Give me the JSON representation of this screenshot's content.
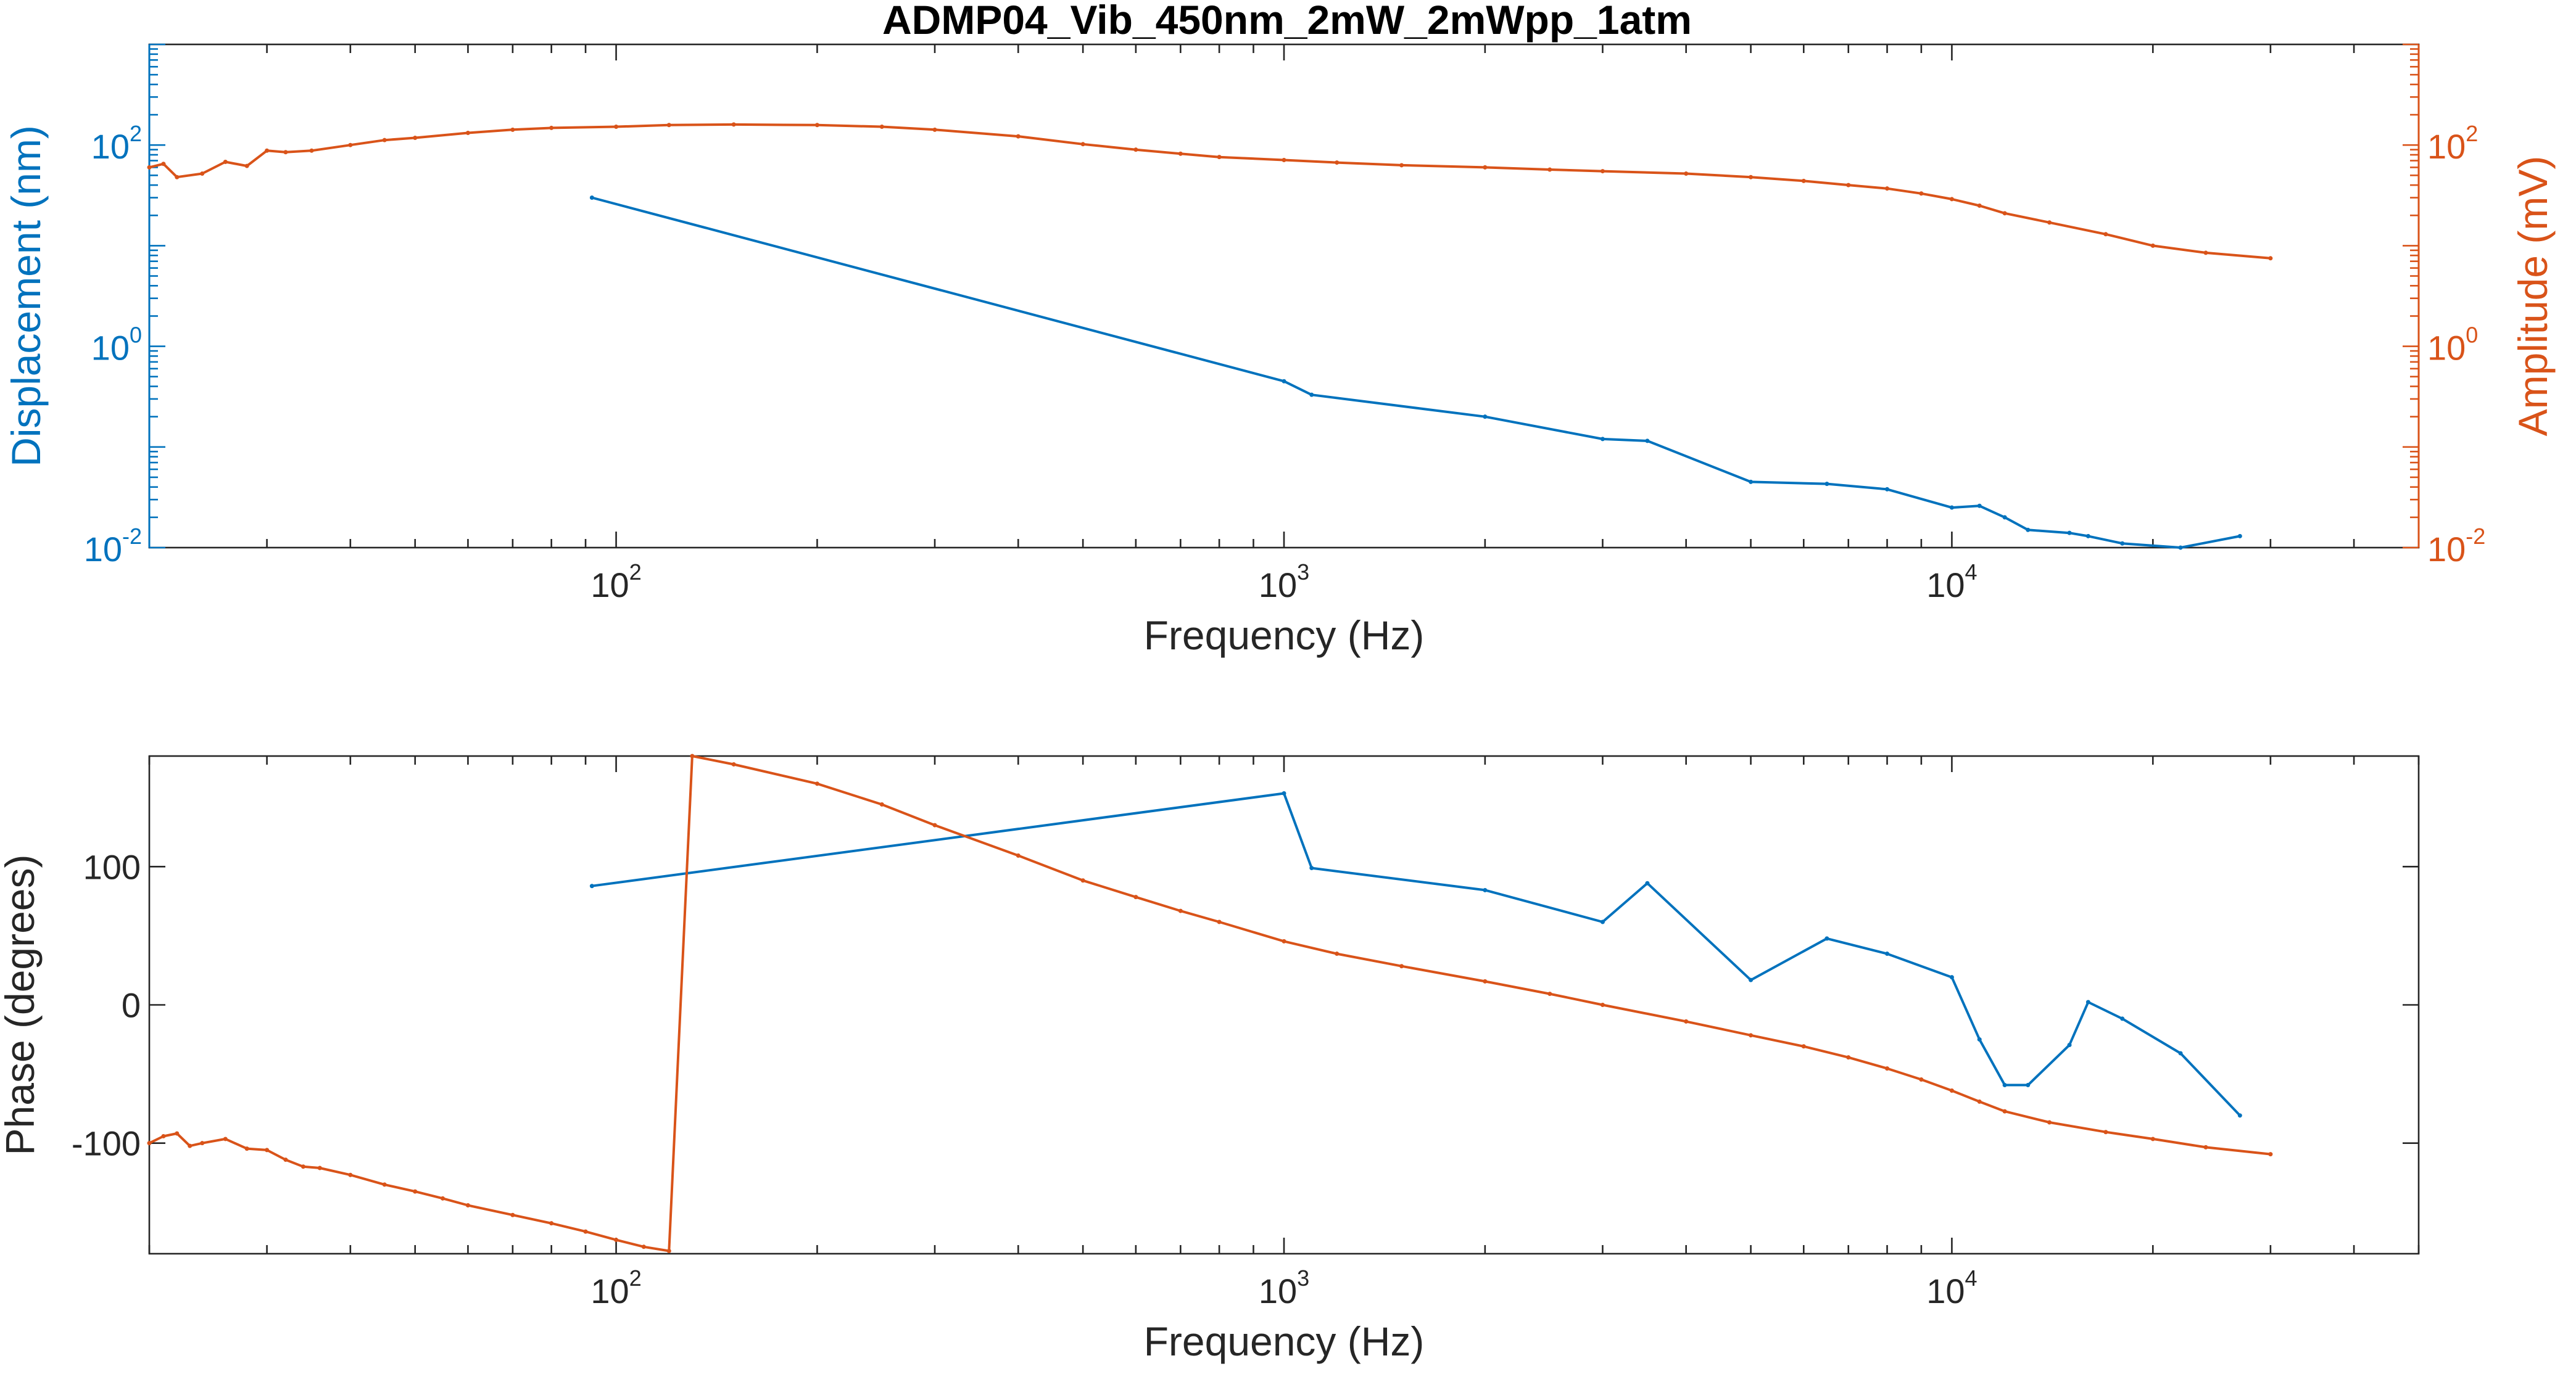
{
  "chart_data": [
    {
      "type": "line",
      "title": "ADMP04_Vib_450nm_2mW_2mWpp_1atm",
      "xlabel": "Frequency (Hz)",
      "ylabel": "Displacement (nm)",
      "ylabel_right": "Amplitude (mV)",
      "xscale": "log",
      "yscale": "log",
      "xlim": [
        20,
        50000
      ],
      "ylim": [
        0.01,
        1000
      ],
      "ylim_right": [
        0.01,
        1000
      ],
      "xticks": [
        {
          "base": "10",
          "exp": "2"
        },
        {
          "base": "10",
          "exp": "3"
        },
        {
          "base": "10",
          "exp": "4"
        }
      ],
      "yticks": [
        {
          "base": "10",
          "exp": "-2"
        },
        {
          "base": "10",
          "exp": "0"
        },
        {
          "base": "10",
          "exp": "2"
        }
      ],
      "yticks_right": [
        {
          "base": "10",
          "exp": "-2"
        },
        {
          "base": "10",
          "exp": "0"
        },
        {
          "base": "10",
          "exp": "2"
        }
      ],
      "grid": false,
      "colors": {
        "left": "#0072BD",
        "right": "#D95319"
      },
      "series": [
        {
          "axis": "left",
          "color": "#0072BD",
          "x": [
            92,
            1000,
            1100,
            2000,
            3000,
            3500,
            5000,
            6500,
            8000,
            10000,
            11000,
            12000,
            13000,
            15000,
            16000,
            18000,
            22000,
            27000
          ],
          "y": [
            30,
            0.45,
            0.33,
            0.2,
            0.12,
            0.115,
            0.045,
            0.043,
            0.038,
            0.025,
            0.026,
            0.02,
            0.015,
            0.014,
            0.013,
            0.011,
            0.01,
            0.013
          ]
        },
        {
          "axis": "right",
          "color": "#D95319",
          "x": [
            20,
            21,
            22,
            24,
            26,
            28,
            30,
            32,
            35,
            40,
            45,
            50,
            60,
            70,
            80,
            100,
            120,
            150,
            200,
            250,
            300,
            400,
            500,
            600,
            700,
            800,
            1000,
            1200,
            1500,
            2000,
            2500,
            3000,
            4000,
            5000,
            6000,
            7000,
            8000,
            9000,
            10000,
            11000,
            12000,
            14000,
            17000,
            20000,
            24000,
            30000
          ],
          "y": [
            60,
            65,
            48,
            52,
            68,
            62,
            88,
            85,
            88,
            100,
            112,
            118,
            132,
            142,
            148,
            152,
            158,
            160,
            158,
            152,
            142,
            122,
            102,
            90,
            82,
            76,
            71,
            67,
            63,
            60,
            57,
            55,
            52,
            48,
            44,
            40,
            37,
            33,
            29,
            25,
            21,
            17,
            13,
            10,
            8.5,
            7.5
          ]
        }
      ]
    },
    {
      "type": "line",
      "title": "",
      "xlabel": "Frequency (Hz)",
      "ylabel": "Phase (degrees)",
      "xscale": "log",
      "yscale": "linear",
      "xlim": [
        20,
        50000
      ],
      "ylim": [
        -180,
        180
      ],
      "xticks": [
        {
          "base": "10",
          "exp": "2"
        },
        {
          "base": "10",
          "exp": "3"
        },
        {
          "base": "10",
          "exp": "4"
        }
      ],
      "yticks": [
        "-100",
        "0",
        "100"
      ],
      "ytick_values": [
        -100,
        0,
        100
      ],
      "grid": false,
      "series": [
        {
          "color": "#0072BD",
          "x": [
            92,
            1000,
            1100,
            2000,
            3000,
            3500,
            5000,
            6500,
            8000,
            10000,
            11000,
            12000,
            13000,
            15000,
            16000,
            18000,
            22000,
            27000
          ],
          "y": [
            86,
            153,
            99,
            83,
            60,
            88,
            18,
            48,
            37,
            20,
            -25,
            -58,
            -58,
            -29,
            2,
            -10,
            -35,
            -80
          ]
        },
        {
          "color": "#D95319",
          "x": [
            20,
            21,
            22,
            23,
            24,
            26,
            28,
            30,
            32,
            34,
            36,
            40,
            45,
            50,
            55,
            60,
            70,
            80,
            90,
            100,
            110,
            120,
            130,
            150,
            200,
            250,
            300,
            400,
            500,
            600,
            700,
            800,
            1000,
            1200,
            1500,
            2000,
            2500,
            3000,
            4000,
            5000,
            6000,
            7000,
            8000,
            9000,
            10000,
            11000,
            12000,
            14000,
            17000,
            20000,
            24000,
            30000
          ],
          "y": [
            -100,
            -95,
            -93,
            -102,
            -100,
            -97,
            -104,
            -105,
            -112,
            -117,
            -118,
            -123,
            -130,
            -135,
            -140,
            -145,
            -152,
            -158,
            -164,
            -170,
            -175,
            -178,
            180,
            174,
            160,
            145,
            130,
            108,
            90,
            78,
            68,
            60,
            46,
            37,
            28,
            17,
            8,
            0,
            -12,
            -22,
            -30,
            -38,
            -46,
            -54,
            -62,
            -70,
            -77,
            -85,
            -92,
            -97,
            -103,
            -108
          ]
        }
      ]
    }
  ]
}
